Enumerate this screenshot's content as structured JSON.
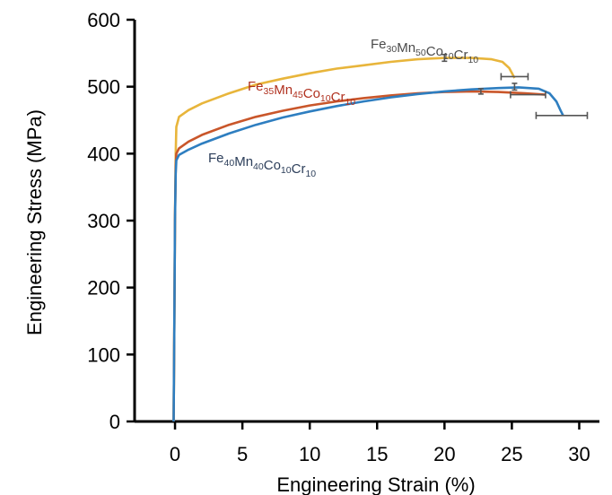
{
  "chart_data": {
    "type": "line",
    "title": "",
    "xlabel": "Engineering Strain (%)",
    "ylabel": "Engineering Stress (MPa)",
    "xlim": [
      -3,
      31.5
    ],
    "ylim": [
      0,
      600
    ],
    "xticks": [
      0,
      5,
      10,
      15,
      20,
      25,
      30
    ],
    "yticks": [
      0,
      100,
      200,
      300,
      400,
      500,
      600
    ],
    "grid": false,
    "series": [
      {
        "name": "Fe30Mn50Co10Cr10",
        "label_parts": [
          [
            "Fe",
            "30"
          ],
          [
            "Mn",
            "50"
          ],
          [
            "Co",
            "10"
          ],
          [
            "Cr",
            "10"
          ]
        ],
        "color": "#E8B53B",
        "points": [
          [
            -0.1,
            0
          ],
          [
            -0.05,
            150
          ],
          [
            0,
            300
          ],
          [
            0.05,
            400
          ],
          [
            0.1,
            440
          ],
          [
            0.3,
            455
          ],
          [
            1,
            465
          ],
          [
            2,
            475
          ],
          [
            4,
            490
          ],
          [
            6,
            503
          ],
          [
            8,
            512
          ],
          [
            10,
            520
          ],
          [
            12,
            527
          ],
          [
            14,
            532
          ],
          [
            16,
            537
          ],
          [
            18,
            541
          ],
          [
            20,
            543
          ],
          [
            22,
            543
          ],
          [
            23.5,
            541
          ],
          [
            24.3,
            537
          ],
          [
            24.8,
            528
          ],
          [
            25.2,
            513
          ]
        ],
        "error_bars": [
          {
            "x": 20,
            "y": 543,
            "dy": 5
          },
          {
            "x": 25.2,
            "y": 515,
            "dx": 1
          }
        ]
      },
      {
        "name": "Fe35Mn45Co10Cr10",
        "label_parts": [
          [
            "Fe",
            "35"
          ],
          [
            "Mn",
            "45"
          ],
          [
            "Co",
            "10"
          ],
          [
            "Cr",
            "10"
          ]
        ],
        "color": "#C9562A",
        "points": [
          [
            -0.1,
            0
          ],
          [
            -0.05,
            150
          ],
          [
            0,
            300
          ],
          [
            0.05,
            380
          ],
          [
            0.1,
            400
          ],
          [
            0.3,
            408
          ],
          [
            1,
            418
          ],
          [
            2,
            428
          ],
          [
            4,
            443
          ],
          [
            6,
            455
          ],
          [
            8,
            464
          ],
          [
            10,
            472
          ],
          [
            12,
            478
          ],
          [
            14,
            483
          ],
          [
            16,
            487
          ],
          [
            18,
            490
          ],
          [
            20,
            492
          ],
          [
            22,
            493
          ],
          [
            24,
            492
          ],
          [
            26,
            490
          ],
          [
            27.5,
            488
          ]
        ],
        "error_bars": [
          {
            "x": 22.7,
            "y": 493,
            "dy": 4
          },
          {
            "x": 26.2,
            "y": 488,
            "dx": 1.3
          }
        ]
      },
      {
        "name": "Fe40Mn40Co10Cr10",
        "label_parts": [
          [
            "Fe",
            "40"
          ],
          [
            "Mn",
            "40"
          ],
          [
            "Co",
            "10"
          ],
          [
            "Cr",
            "10"
          ]
        ],
        "color": "#2E7EC0",
        "points": [
          [
            -0.1,
            0
          ],
          [
            -0.05,
            150
          ],
          [
            0,
            300
          ],
          [
            0.05,
            370
          ],
          [
            0.1,
            390
          ],
          [
            0.3,
            398
          ],
          [
            1,
            406
          ],
          [
            2,
            415
          ],
          [
            4,
            430
          ],
          [
            6,
            443
          ],
          [
            8,
            454
          ],
          [
            10,
            463
          ],
          [
            12,
            471
          ],
          [
            14,
            478
          ],
          [
            16,
            484
          ],
          [
            18,
            489
          ],
          [
            20,
            493
          ],
          [
            22,
            496
          ],
          [
            24,
            498
          ],
          [
            25.5,
            499
          ],
          [
            27,
            497
          ],
          [
            27.8,
            490
          ],
          [
            28.3,
            478
          ],
          [
            28.6,
            465
          ],
          [
            28.8,
            457
          ]
        ],
        "error_bars": [
          {
            "x": 25.2,
            "y": 500,
            "dy": 5
          },
          {
            "x": 28.7,
            "y": 457,
            "dx": 1.9
          }
        ]
      }
    ]
  }
}
